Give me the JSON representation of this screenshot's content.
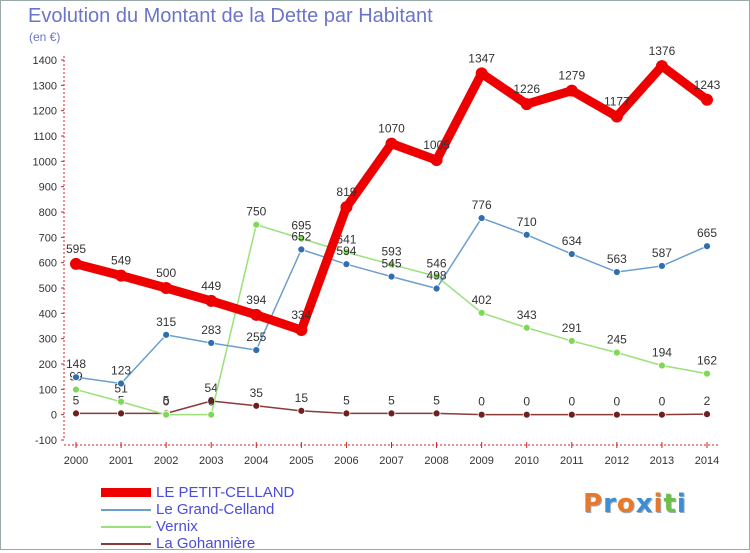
{
  "title": "Evolution du Montant de la Dette par Habitant",
  "unit_label": "(en €)",
  "logo_letters": [
    "P",
    "r",
    "o",
    "x",
    "i",
    "t",
    "i"
  ],
  "logo_colors": [
    "#e8792a",
    "#3c8fd4",
    "#e8792a",
    "#3c8fd4",
    "#e8792a",
    "#6cc04a",
    "#3c8fd4"
  ],
  "chart_data": {
    "type": "line",
    "title": "Evolution du Montant de la Dette par Habitant",
    "ylabel": "(en €)",
    "xlabel": "",
    "ylim": [
      -100,
      1400
    ],
    "ytick_step": 100,
    "x": [
      2000,
      2001,
      2002,
      2003,
      2004,
      2005,
      2006,
      2007,
      2008,
      2009,
      2010,
      2011,
      2012,
      2013,
      2014
    ],
    "series": [
      {
        "name": "LE PETIT-CELLAND",
        "color": "#ee0000",
        "marker": "#ee0000",
        "values": [
          595,
          549,
          500,
          449,
          394,
          334,
          819,
          1070,
          1005,
          1347,
          1226,
          1279,
          1177,
          1376,
          1243
        ]
      },
      {
        "name": "Le Grand-Celland",
        "color": "#6a9fd0",
        "marker": "#2f6fb0",
        "values": [
          148,
          123,
          315,
          283,
          255,
          652,
          594,
          545,
          498,
          776,
          710,
          634,
          563,
          587,
          665
        ]
      },
      {
        "name": "Vernix",
        "color": "#9be07a",
        "marker": "#7ed957",
        "values": [
          99,
          51,
          0,
          0,
          750,
          695,
          641,
          593,
          546,
          402,
          343,
          291,
          245,
          194,
          162
        ]
      },
      {
        "name": "La Gohannière",
        "color": "#8b3a3a",
        "marker": "#6e2020",
        "values": [
          5,
          5,
          5,
          54,
          35,
          15,
          5,
          5,
          5,
          0,
          0,
          0,
          0,
          0,
          2
        ]
      }
    ],
    "legend_position": "bottom-left",
    "grid": false
  }
}
